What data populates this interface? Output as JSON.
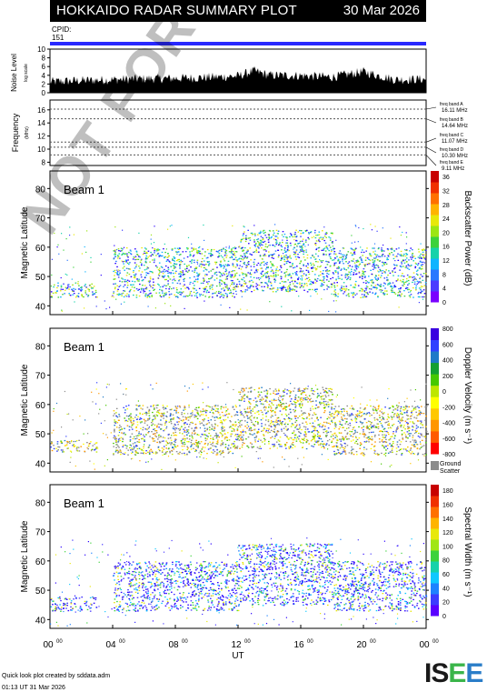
{
  "header": {
    "title": "HOKKAIDO RADAR SUMMARY PLOT",
    "date": "30 Mar 2026",
    "cpid_label": "CPID:",
    "cpid_value": "151",
    "cpid_bar_color": "#2828ff"
  },
  "noise_panel": {
    "ylabel_main": "Noise Level",
    "ylabel_sub": "log scale",
    "yticks": [
      "0",
      "2",
      "4",
      "6",
      "8",
      "10"
    ]
  },
  "frequency_panel": {
    "ylabel": "Frequency",
    "unit": "(MHz)",
    "yticks": [
      "8",
      "10",
      "12",
      "14",
      "16"
    ],
    "bands": [
      {
        "name": "freq band A",
        "value": "16.11 MHz"
      },
      {
        "name": "freq band B",
        "value": "14.64 MHz"
      },
      {
        "name": "freq band C",
        "value": "11.07 MHz"
      },
      {
        "name": "freq band D",
        "value": "10.30 MHz"
      },
      {
        "name": "freq band E",
        "value": "9.11 MHz"
      }
    ]
  },
  "panels": [
    {
      "beam": "Beam  1",
      "ylabel": "Magnetic Latitude",
      "cbar_label": "Backscatter Power (dB)",
      "cbar_ticks": [
        "0",
        "4",
        "8",
        "12",
        "16",
        "20",
        "24",
        "28",
        "32",
        "36"
      ],
      "cbar_colors": [
        "#7a00ff",
        "#4c3cff",
        "#2a78ff",
        "#10b4ff",
        "#16d2aa",
        "#3cd23c",
        "#9ce614",
        "#e8e80a",
        "#ffb400",
        "#ff7000",
        "#f03000",
        "#c80000"
      ]
    },
    {
      "beam": "Beam  1",
      "ylabel": "Magnetic Latitude",
      "cbar_label": "Doppler Velocity (m s⁻¹)",
      "cbar_ticks": [
        "-800",
        "-600",
        "-400",
        "-200",
        "0",
        "200",
        "400",
        "600",
        "800"
      ],
      "cbar_colors": [
        "#ff0000",
        "#ff5a00",
        "#ff9600",
        "#ffc800",
        "#ffff00",
        "#bee600",
        "#46c800",
        "#14a032",
        "#1e7ac8",
        "#3040ff",
        "#3a00e0"
      ],
      "ground_label_1": "Ground",
      "ground_label_2": "Scatter",
      "ground_color": "#8c8c8c"
    },
    {
      "beam": "Beam  1",
      "ylabel": "Magnetic Latitude",
      "cbar_label": "Spectral Width (m s⁻¹)",
      "cbar_ticks": [
        "0",
        "20",
        "40",
        "60",
        "80",
        "100",
        "120",
        "140",
        "160",
        "180"
      ],
      "cbar_colors": [
        "#5a00ff",
        "#3c3cff",
        "#1e82ff",
        "#10c8ff",
        "#16d2aa",
        "#3cd23c",
        "#a0e614",
        "#e8e80a",
        "#ffb400",
        "#ff7000",
        "#f03000",
        "#c80000"
      ]
    }
  ],
  "lat_ticks": [
    "40",
    "50",
    "60",
    "70",
    "80"
  ],
  "ut_ticks": [
    "00",
    "04",
    "08",
    "12",
    "16",
    "20",
    "00"
  ],
  "ut_tick_sup": "00",
  "xlabel": "UT",
  "footer": {
    "line1": "Quick look plot created by sddata.adm",
    "line2": "01:13 UT 31 Mar 2026"
  },
  "logo": {
    "text": "ISEE"
  },
  "watermark": "NOT FOR PUBLICATION",
  "chart_data": [
    {
      "type": "area",
      "title": "Noise Level",
      "ylim": [
        0,
        10
      ],
      "x_range_ut_hours": [
        0,
        24
      ],
      "x": [
        0,
        2,
        4,
        6,
        8,
        10,
        12,
        13,
        14,
        16,
        18,
        20,
        22,
        24
      ],
      "values": [
        2.5,
        2.8,
        3.0,
        3.2,
        3.3,
        3.5,
        3.8,
        5.0,
        4.0,
        3.9,
        3.6,
        4.8,
        3.0,
        3.1
      ]
    },
    {
      "type": "line",
      "title": "Frequency",
      "ylim": [
        8,
        17
      ],
      "series": [
        {
          "name": "freq band A",
          "values": [
            16.11
          ]
        },
        {
          "name": "freq band B",
          "values": [
            14.64
          ]
        },
        {
          "name": "freq band C",
          "values": [
            11.07
          ]
        },
        {
          "name": "freq band D",
          "values": [
            10.3
          ]
        },
        {
          "name": "freq band E",
          "values": [
            9.11
          ]
        }
      ]
    },
    {
      "type": "heatmap",
      "title": "Backscatter Power",
      "ylim": [
        37,
        86
      ],
      "xlim_ut": [
        0,
        24
      ],
      "regions": [
        {
          "ut": [
            0,
            3
          ],
          "lat": [
            43,
            48
          ]
        },
        {
          "ut": [
            4,
            12
          ],
          "lat": [
            43,
            60
          ]
        },
        {
          "ut": [
            12,
            18
          ],
          "lat": [
            45,
            66
          ]
        },
        {
          "ut": [
            18,
            24
          ],
          "lat": [
            43,
            60
          ]
        }
      ]
    },
    {
      "type": "heatmap",
      "title": "Doppler Velocity",
      "ylim": [
        37,
        86
      ],
      "xlim_ut": [
        0,
        24
      ],
      "regions": [
        {
          "ut": [
            0,
            3
          ],
          "lat": [
            44,
            48
          ]
        },
        {
          "ut": [
            4,
            12
          ],
          "lat": [
            43,
            60
          ]
        },
        {
          "ut": [
            12,
            18
          ],
          "lat": [
            45,
            66
          ]
        },
        {
          "ut": [
            18,
            24
          ],
          "lat": [
            43,
            60
          ]
        }
      ]
    },
    {
      "type": "heatmap",
      "title": "Spectral Width",
      "ylim": [
        37,
        86
      ],
      "xlim_ut": [
        0,
        24
      ],
      "regions": [
        {
          "ut": [
            0,
            3
          ],
          "lat": [
            43,
            48
          ]
        },
        {
          "ut": [
            4,
            12
          ],
          "lat": [
            43,
            60
          ]
        },
        {
          "ut": [
            12,
            18
          ],
          "lat": [
            45,
            66
          ]
        },
        {
          "ut": [
            18,
            24
          ],
          "lat": [
            43,
            60
          ]
        }
      ]
    }
  ]
}
